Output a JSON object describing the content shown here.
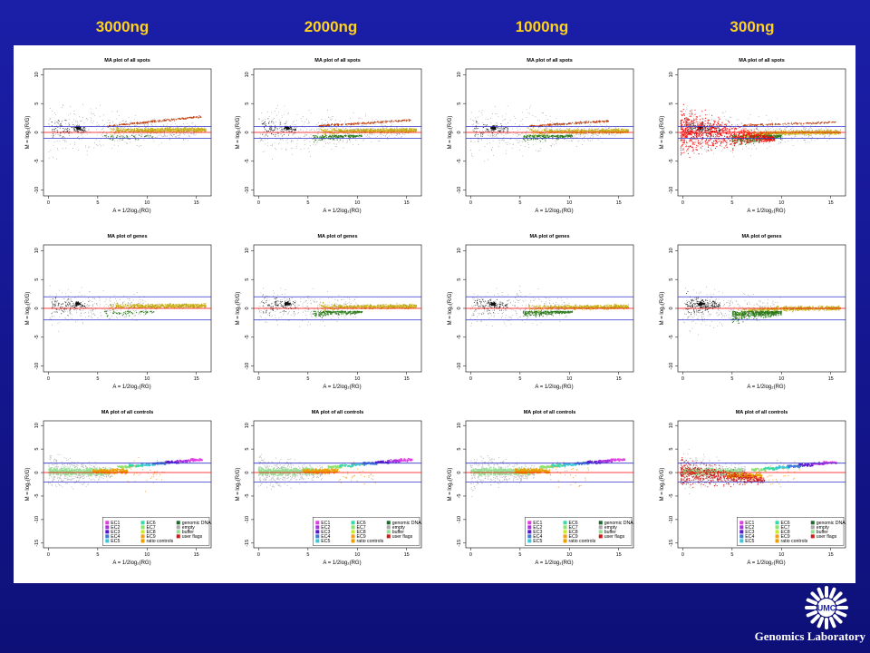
{
  "column_titles": [
    "3000ng",
    "2000ng",
    "1000ng",
    "300ng"
  ],
  "logo": {
    "text": "UMC",
    "icon": "umc-sun-logo"
  },
  "lab_name": "Genomics Laboratory",
  "colors": {
    "background": "#1a1ea6",
    "title": "#ffd21a",
    "cutoff_line": "#3333cc",
    "zero_line": "#ff0000"
  },
  "chart_data": {
    "type": "scatter",
    "rows": [
      {
        "title": "MA plot of all spots",
        "cutoff": 1,
        "kind": "spots"
      },
      {
        "title": "MA plot of genes",
        "cutoff": 2,
        "kind": "genes"
      },
      {
        "title": "MA plot of all controls",
        "cutoff": 2,
        "kind": "controls"
      }
    ],
    "xlabel": "A = 1/2log₂(RG)",
    "ylabel": "M = log₂(R/G)",
    "xlim": [
      -0.5,
      16.5
    ],
    "ylim": [
      -11,
      11
    ],
    "xticks": [
      0,
      5,
      10,
      15
    ],
    "yticks": [
      -10,
      -5,
      0,
      5,
      10
    ],
    "controls_ylim": [
      -16,
      11
    ],
    "controls_yticks": [
      -15,
      -10,
      -5,
      0,
      5,
      10
    ],
    "legend": {
      "position": "bottom-right",
      "entries": [
        {
          "label": "EC1",
          "color": "#e23ce2"
        },
        {
          "label": "EC2",
          "color": "#a82fe0"
        },
        {
          "label": "EC3",
          "color": "#5a16d0"
        },
        {
          "label": "EC4",
          "color": "#3b7ad8"
        },
        {
          "label": "EC5",
          "color": "#38c8d8"
        },
        {
          "label": "EC6",
          "color": "#38d8a8"
        },
        {
          "label": "EC7",
          "color": "#8fe070"
        },
        {
          "label": "EC8",
          "color": "#c8e830"
        },
        {
          "label": "EC9",
          "color": "#f0a020"
        },
        {
          "label": "ratio controls",
          "color": "#e8a000"
        },
        {
          "label": "genomic DNA",
          "color": "#1a6a2a"
        },
        {
          "label": "empty",
          "color": "#a8a8a8"
        },
        {
          "label": "buffer",
          "color": "#90e090"
        },
        {
          "label": "user flags",
          "color": "#d01818"
        }
      ]
    },
    "series_colors": {
      "background_spots": "#808080",
      "dense_spots": "#111111",
      "main_band": "#b8a010",
      "main_band_light": "#d8c030",
      "upper_trend": "#c04010",
      "green_cloud": "#2a7a1a",
      "red_cloud": "#ff0000"
    }
  }
}
